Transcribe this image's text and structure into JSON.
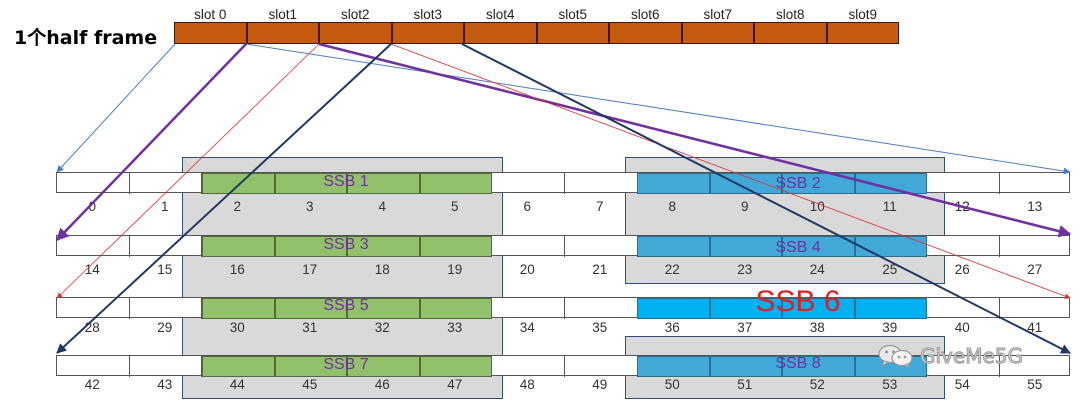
{
  "frame_label": "1个half frame",
  "slots": [
    "slot 0",
    "slot1",
    "slot2",
    "slot3",
    "slot4",
    "slot5",
    "slot6",
    "slot7",
    "slot8",
    "slot9"
  ],
  "symbol_rows": [
    [
      "0",
      "1",
      "2",
      "3",
      "4",
      "5",
      "6",
      "7",
      "8",
      "9",
      "10",
      "11",
      "12",
      "13"
    ],
    [
      "14",
      "15",
      "16",
      "17",
      "18",
      "19",
      "20",
      "21",
      "22",
      "23",
      "24",
      "25",
      "26",
      "27"
    ],
    [
      "28",
      "29",
      "30",
      "31",
      "32",
      "33",
      "34",
      "35",
      "36",
      "37",
      "38",
      "39",
      "40",
      "41"
    ],
    [
      "42",
      "43",
      "44",
      "45",
      "46",
      "47",
      "48",
      "49",
      "50",
      "51",
      "52",
      "53",
      "54",
      "55"
    ]
  ],
  "ssb_labels": {
    "ssb1": "SSB 1",
    "ssb2": "SSB 2",
    "ssb3": "SSB 3",
    "ssb4": "SSB 4",
    "ssb5": "SSB 5",
    "ssb6": "SSB 6",
    "ssb7": "SSB 7",
    "ssb8": "SSB 8"
  },
  "watermark": {
    "text": "GiveMe5G",
    "icon": "wechat-icon"
  },
  "colors": {
    "slot_fill": "#c55a11",
    "ssb_even_slot": "#93c06a",
    "ssb_odd_slot": "#41a8d8",
    "ssb6_fill": "#00b0f0",
    "group_box": "#d9d9d9",
    "ssb_label": "#7030a0",
    "ssb6_label": "#e02020",
    "arrow_slot0": "#4a7ebb",
    "arrow_slot1": "#7030a0",
    "arrow_slot2": "#e03030",
    "arrow_slot3": "#1f3864"
  }
}
